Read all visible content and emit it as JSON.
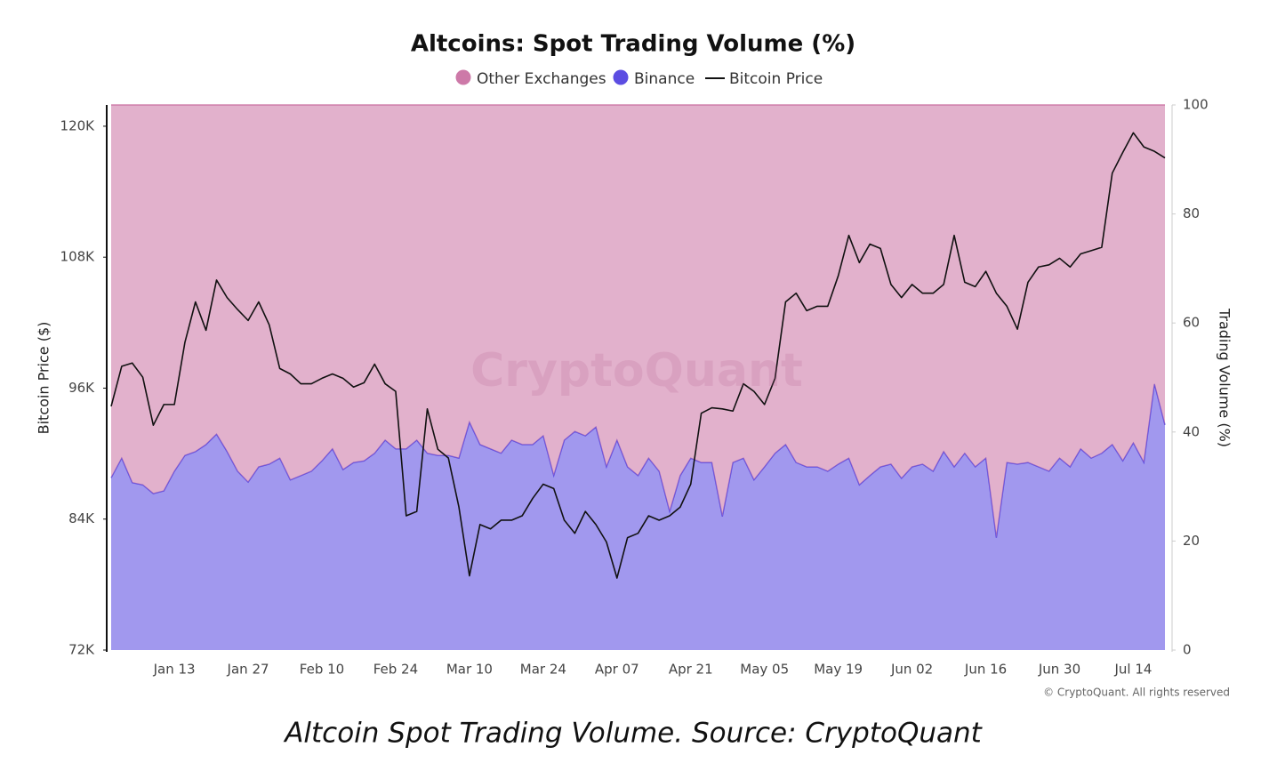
{
  "chart_data": {
    "type": "area",
    "title": "Altcoins: Spot Trading Volume (%)",
    "watermark": "CryptoQuant",
    "copyright": "© CryptoQuant. All rights reserved",
    "caption": "Altcoin Spot Trading Volume. Source: CryptoQuant",
    "y_label": "Bitcoin Price ($)",
    "y2_label": "Trading Volume (%)",
    "categories": [
      null,
      null,
      null,
      null,
      null,
      null,
      "Jan 13",
      null,
      null,
      null,
      null,
      null,
      null,
      "Jan 27",
      null,
      null,
      null,
      null,
      null,
      null,
      "Feb 10",
      null,
      null,
      null,
      null,
      null,
      null,
      "Feb 24",
      null,
      null,
      null,
      null,
      null,
      null,
      "Mar 10",
      null,
      null,
      null,
      null,
      null,
      null,
      "Mar 24",
      null,
      null,
      null,
      null,
      null,
      null,
      "Apr 07",
      null,
      null,
      null,
      null,
      null,
      null,
      "Apr 21",
      null,
      null,
      null,
      null,
      null,
      null,
      "May 05",
      null,
      null,
      null,
      null,
      null,
      null,
      "May 19",
      null,
      null,
      null,
      null,
      null,
      null,
      "Jun 02",
      null,
      null,
      null,
      null,
      null,
      null,
      "Jun 16",
      null,
      null,
      null,
      null,
      null,
      null,
      "Jun 30",
      null,
      null,
      null,
      null,
      null,
      null,
      "Jul 14",
      null,
      null,
      null
    ],
    "ylim": [
      72000,
      121950
    ],
    "yticks": [
      {
        "value": 72000,
        "label": "72K"
      },
      {
        "value": 84000,
        "label": "84K"
      },
      {
        "value": 96000,
        "label": "96K"
      },
      {
        "value": 108000,
        "label": "108K"
      },
      {
        "value": 120000,
        "label": "120K"
      }
    ],
    "y2lim": [
      0,
      100
    ],
    "y2ticks": [
      0,
      20,
      40,
      60,
      80,
      100
    ],
    "grid": false,
    "legend": "top",
    "series": [
      {
        "name": "Other Exchanges",
        "type": "area",
        "axis": "y2",
        "color": "#c86a9e",
        "values": [
          68.4,
          64.8,
          69.3,
          69.7,
          71.3,
          70.8,
          67.2,
          64.3,
          63.6,
          62.3,
          60.4,
          63.6,
          67.2,
          69.2,
          66.4,
          65.9,
          64.8,
          68.8,
          68.0,
          67.2,
          65.3,
          63.1,
          66.9,
          65.6,
          65.3,
          63.9,
          61.5,
          63.1,
          63.1,
          61.5,
          63.9,
          64.3,
          64.3,
          64.8,
          58.2,
          62.3,
          63.1,
          63.9,
          61.5,
          62.3,
          62.3,
          60.7,
          68.0,
          61.5,
          59.9,
          60.7,
          59.1,
          66.4,
          61.5,
          66.4,
          68.0,
          64.8,
          67.2,
          74.6,
          68.0,
          64.8,
          65.6,
          65.6,
          75.5,
          65.6,
          64.8,
          68.8,
          66.4,
          63.9,
          62.3,
          65.6,
          66.4,
          66.4,
          67.2,
          65.9,
          64.8,
          69.7,
          68.0,
          66.4,
          65.9,
          68.5,
          66.4,
          65.9,
          67.2,
          63.6,
          66.4,
          63.9,
          66.4,
          64.8,
          79.4,
          65.6,
          65.9,
          65.6,
          66.4,
          67.2,
          64.8,
          66.4,
          63.1,
          64.8,
          63.9,
          62.3,
          65.3,
          62.0,
          65.6,
          51.2,
          58.7
        ]
      },
      {
        "name": "Binance",
        "type": "area",
        "axis": "y2",
        "color": "#4a3adf",
        "values": [
          31.6,
          35.2,
          30.7,
          30.3,
          28.7,
          29.2,
          32.8,
          35.7,
          36.4,
          37.7,
          39.6,
          36.4,
          32.8,
          30.8,
          33.6,
          34.1,
          35.2,
          31.2,
          32.0,
          32.8,
          34.7,
          36.9,
          33.1,
          34.4,
          34.7,
          36.1,
          38.5,
          36.9,
          36.9,
          38.5,
          36.1,
          35.7,
          35.7,
          35.2,
          41.8,
          37.7,
          36.9,
          36.1,
          38.5,
          37.7,
          37.7,
          39.3,
          32.0,
          38.5,
          40.1,
          39.3,
          40.9,
          33.6,
          38.5,
          33.6,
          32.0,
          35.2,
          32.8,
          25.4,
          32.0,
          35.2,
          34.4,
          34.4,
          24.5,
          34.4,
          35.2,
          31.2,
          33.6,
          36.1,
          37.7,
          34.4,
          33.6,
          33.6,
          32.8,
          34.1,
          35.2,
          30.3,
          32.0,
          33.6,
          34.1,
          31.5,
          33.6,
          34.1,
          32.8,
          36.4,
          33.6,
          36.1,
          33.6,
          35.2,
          20.6,
          34.4,
          34.1,
          34.4,
          33.6,
          32.8,
          35.2,
          33.6,
          36.9,
          35.2,
          36.1,
          37.7,
          34.7,
          38.0,
          34.4,
          48.8,
          41.3
        ]
      },
      {
        "name": "Bitcoin Price",
        "type": "line",
        "axis": "y",
        "color": "#111111",
        "values": [
          94330,
          98000,
          98300,
          97000,
          92600,
          94500,
          94500,
          100200,
          103900,
          101300,
          105900,
          104300,
          103200,
          102200,
          103900,
          101800,
          97800,
          97300,
          96400,
          96400,
          96900,
          97300,
          96900,
          96100,
          96500,
          98200,
          96400,
          95700,
          84300,
          84700,
          94100,
          90400,
          89600,
          85100,
          78800,
          83500,
          83100,
          83900,
          83900,
          84300,
          85900,
          87200,
          86800,
          83900,
          82700,
          84700,
          83500,
          81900,
          78600,
          82300,
          82700,
          84300,
          83900,
          84300,
          85100,
          87200,
          93700,
          94200,
          94100,
          93900,
          96400,
          95700,
          94500,
          96900,
          103900,
          104700,
          103100,
          103500,
          103500,
          106300,
          110000,
          107500,
          109200,
          108800,
          105500,
          104300,
          105500,
          104700,
          104700,
          105500,
          110000,
          105700,
          105300,
          106700,
          104700,
          103500,
          101400,
          105700,
          107100,
          107300,
          107900,
          107100,
          108300,
          108600,
          108900,
          115700,
          117600,
          119400,
          118100,
          117700,
          117100
        ]
      }
    ]
  }
}
